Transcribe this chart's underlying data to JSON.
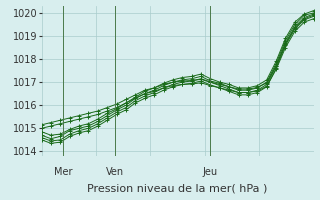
{
  "bg_color": "#d8eeee",
  "grid_color": "#aacccc",
  "line_color": "#1a6b1a",
  "marker_color": "#1a6b1a",
  "ylim": [
    1013.8,
    1020.3
  ],
  "yticks": [
    1014,
    1015,
    1016,
    1017,
    1018,
    1019,
    1020
  ],
  "xlabel": "Pression niveau de la mer( hPa )",
  "xlabel_fontsize": 8,
  "tick_fontsize": 7,
  "day_labels": [
    "Mer",
    "Ven",
    "Jeu"
  ],
  "day_positions": [
    0.08,
    0.27,
    0.62
  ],
  "lines": [
    [
      1014.7,
      1014.55,
      1014.65,
      1014.9,
      1015.0,
      1015.1,
      1015.3,
      1015.55,
      1015.8,
      1016.0,
      1016.3,
      1016.5,
      1016.65,
      1016.85,
      1017.0,
      1017.1,
      1017.15,
      1017.25,
      1017.05,
      1016.95,
      1016.8,
      1016.65,
      1016.65,
      1016.75,
      1017.0,
      1017.8,
      1018.8,
      1019.5,
      1019.9,
      1020.0
    ],
    [
      1014.85,
      1014.7,
      1014.75,
      1014.95,
      1015.1,
      1015.2,
      1015.4,
      1015.65,
      1015.85,
      1016.1,
      1016.35,
      1016.6,
      1016.75,
      1016.95,
      1017.1,
      1017.2,
      1017.25,
      1017.35,
      1017.15,
      1017.0,
      1016.9,
      1016.75,
      1016.75,
      1016.85,
      1017.1,
      1017.9,
      1018.9,
      1019.6,
      1019.95,
      1020.1
    ],
    [
      1014.6,
      1014.45,
      1014.5,
      1014.75,
      1014.9,
      1015.0,
      1015.2,
      1015.45,
      1015.7,
      1015.9,
      1016.2,
      1016.4,
      1016.55,
      1016.75,
      1016.9,
      1017.0,
      1017.05,
      1017.15,
      1017.0,
      1016.85,
      1016.7,
      1016.55,
      1016.55,
      1016.65,
      1016.9,
      1017.7,
      1018.7,
      1019.4,
      1019.8,
      1019.95
    ],
    [
      1014.5,
      1014.35,
      1014.4,
      1014.65,
      1014.8,
      1014.9,
      1015.1,
      1015.35,
      1015.6,
      1015.8,
      1016.1,
      1016.3,
      1016.45,
      1016.65,
      1016.8,
      1016.9,
      1016.95,
      1017.05,
      1016.88,
      1016.75,
      1016.6,
      1016.45,
      1016.45,
      1016.55,
      1016.8,
      1017.6,
      1018.6,
      1019.3,
      1019.7,
      1019.85
    ],
    [
      1015.0,
      1015.1,
      1015.2,
      1015.3,
      1015.4,
      1015.5,
      1015.6,
      1015.75,
      1015.9,
      1016.1,
      1016.3,
      1016.5,
      1016.6,
      1016.75,
      1016.85,
      1016.9,
      1016.92,
      1016.97,
      1016.85,
      1016.75,
      1016.65,
      1016.55,
      1016.55,
      1016.62,
      1016.82,
      1017.55,
      1018.5,
      1019.2,
      1019.6,
      1019.75
    ],
    [
      1015.15,
      1015.25,
      1015.35,
      1015.45,
      1015.55,
      1015.65,
      1015.75,
      1015.9,
      1016.05,
      1016.25,
      1016.45,
      1016.65,
      1016.75,
      1016.9,
      1017.0,
      1017.05,
      1017.07,
      1017.12,
      1017.0,
      1016.9,
      1016.8,
      1016.7,
      1016.7,
      1016.77,
      1016.97,
      1017.7,
      1018.65,
      1019.35,
      1019.75,
      1019.9
    ]
  ]
}
